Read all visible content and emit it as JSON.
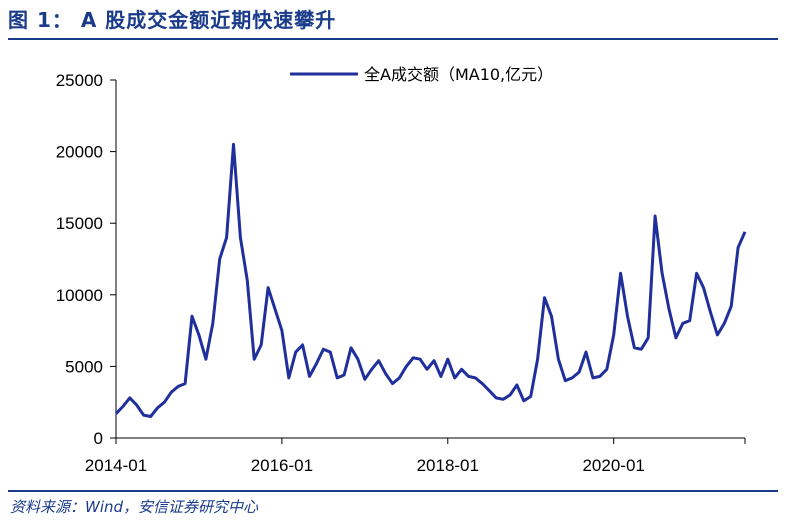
{
  "figure": {
    "title": "图 1： A 股成交金额近期快速攀升",
    "source": "资料来源：Wind，安信证券研究中心"
  },
  "colors": {
    "accent": "#1a3a8a",
    "series": "#1f2f9b"
  },
  "chart_data": {
    "type": "line",
    "title": "",
    "xlabel": "",
    "ylabel": "",
    "ylim": [
      0,
      25000
    ],
    "xlim": [
      "2014-01",
      "2021-08"
    ],
    "grid": false,
    "legend_position": "top-right",
    "yticks": [
      0,
      5000,
      10000,
      15000,
      20000,
      25000
    ],
    "ytick_labels": [
      "0",
      "5000",
      "10000",
      "15000",
      "20000",
      "25000"
    ],
    "xtick_labels": [
      "2014-01",
      "2016-01",
      "2018-01",
      "2020-01"
    ],
    "series": [
      {
        "name": "全A成交额（MA10,亿元）",
        "color": "#1f2f9b",
        "points": [
          [
            "2014-01",
            1700
          ],
          [
            "2014-02",
            2200
          ],
          [
            "2014-03",
            2800
          ],
          [
            "2014-04",
            2300
          ],
          [
            "2014-05",
            1600
          ],
          [
            "2014-06",
            1500
          ],
          [
            "2014-07",
            2100
          ],
          [
            "2014-08",
            2500
          ],
          [
            "2014-09",
            3200
          ],
          [
            "2014-10",
            3600
          ],
          [
            "2014-11",
            3800
          ],
          [
            "2014-12",
            8500
          ],
          [
            "2015-01",
            7200
          ],
          [
            "2015-02",
            5500
          ],
          [
            "2015-03",
            8000
          ],
          [
            "2015-04",
            12500
          ],
          [
            "2015-05",
            14000
          ],
          [
            "2015-06",
            20500
          ],
          [
            "2015-07",
            14000
          ],
          [
            "2015-08",
            11000
          ],
          [
            "2015-09",
            5500
          ],
          [
            "2015-10",
            6500
          ],
          [
            "2015-11",
            10500
          ],
          [
            "2015-12",
            9000
          ],
          [
            "2016-01",
            7500
          ],
          [
            "2016-02",
            4200
          ],
          [
            "2016-03",
            6000
          ],
          [
            "2016-04",
            6500
          ],
          [
            "2016-05",
            4300
          ],
          [
            "2016-06",
            5200
          ],
          [
            "2016-07",
            6200
          ],
          [
            "2016-08",
            6000
          ],
          [
            "2016-09",
            4200
          ],
          [
            "2016-10",
            4400
          ],
          [
            "2016-11",
            6300
          ],
          [
            "2016-12",
            5500
          ],
          [
            "2017-01",
            4100
          ],
          [
            "2017-02",
            4800
          ],
          [
            "2017-03",
            5400
          ],
          [
            "2017-04",
            4500
          ],
          [
            "2017-05",
            3800
          ],
          [
            "2017-06",
            4200
          ],
          [
            "2017-07",
            5000
          ],
          [
            "2017-08",
            5600
          ],
          [
            "2017-09",
            5500
          ],
          [
            "2017-10",
            4800
          ],
          [
            "2017-11",
            5400
          ],
          [
            "2017-12",
            4300
          ],
          [
            "2018-01",
            5500
          ],
          [
            "2018-02",
            4200
          ],
          [
            "2018-03",
            4800
          ],
          [
            "2018-04",
            4300
          ],
          [
            "2018-05",
            4200
          ],
          [
            "2018-06",
            3800
          ],
          [
            "2018-07",
            3300
          ],
          [
            "2018-08",
            2800
          ],
          [
            "2018-09",
            2700
          ],
          [
            "2018-10",
            3000
          ],
          [
            "2018-11",
            3700
          ],
          [
            "2018-12",
            2600
          ],
          [
            "2019-01",
            2900
          ],
          [
            "2019-02",
            5500
          ],
          [
            "2019-03",
            9800
          ],
          [
            "2019-04",
            8500
          ],
          [
            "2019-05",
            5500
          ],
          [
            "2019-06",
            4000
          ],
          [
            "2019-07",
            4200
          ],
          [
            "2019-08",
            4600
          ],
          [
            "2019-09",
            6000
          ],
          [
            "2019-10",
            4200
          ],
          [
            "2019-11",
            4300
          ],
          [
            "2019-12",
            4800
          ],
          [
            "2020-01",
            7200
          ],
          [
            "2020-02",
            11500
          ],
          [
            "2020-03",
            8500
          ],
          [
            "2020-04",
            6300
          ],
          [
            "2020-05",
            6200
          ],
          [
            "2020-06",
            7000
          ],
          [
            "2020-07",
            15500
          ],
          [
            "2020-08",
            11500
          ],
          [
            "2020-09",
            9000
          ],
          [
            "2020-10",
            7000
          ],
          [
            "2020-11",
            8000
          ],
          [
            "2020-12",
            8200
          ],
          [
            "2021-01",
            11500
          ],
          [
            "2021-02",
            10500
          ],
          [
            "2021-03",
            8800
          ],
          [
            "2021-04",
            7200
          ],
          [
            "2021-05",
            8000
          ],
          [
            "2021-06",
            9200
          ],
          [
            "2021-07",
            13300
          ],
          [
            "2021-08",
            14400
          ]
        ]
      }
    ]
  }
}
